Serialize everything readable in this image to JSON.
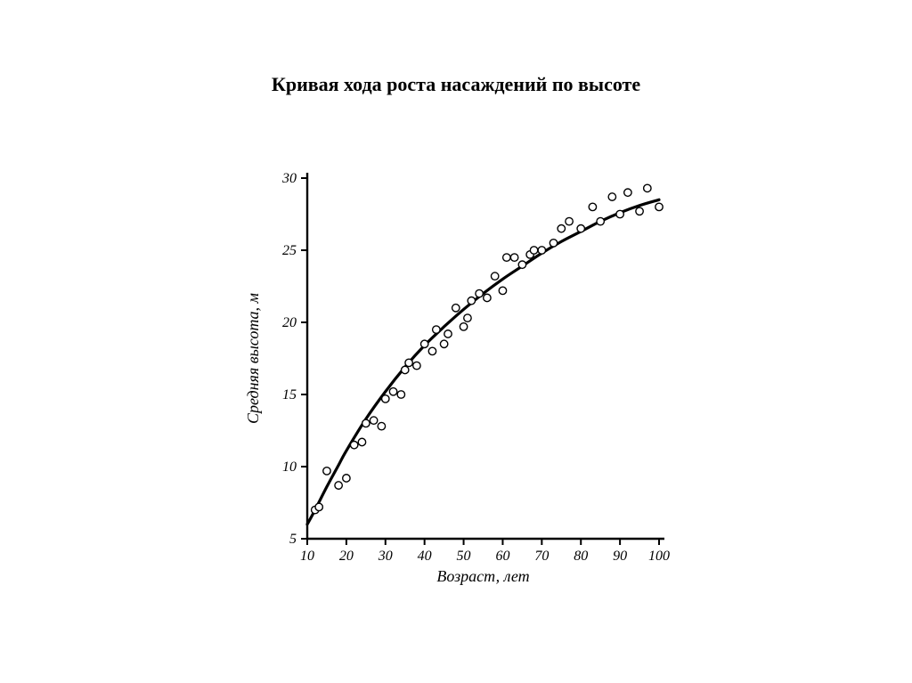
{
  "title": "Кривая хода роста насаждений по высоте",
  "chart": {
    "type": "scatter+line",
    "xlabel": "Возраст, лет",
    "ylabel": "Средняя высота, м",
    "xlim": [
      10,
      100
    ],
    "ylim": [
      5,
      30
    ],
    "xticks": [
      10,
      20,
      30,
      40,
      50,
      60,
      70,
      80,
      90,
      100
    ],
    "yticks": [
      5,
      10,
      15,
      20,
      25,
      30
    ],
    "axis_color": "#000000",
    "line_color": "#000000",
    "line_width": 3.2,
    "marker_stroke": "#000000",
    "marker_fill": "#ffffff",
    "marker_radius": 4.2,
    "marker_stroke_width": 1.4,
    "tick_fontsize": 16,
    "label_fontsize": 18,
    "background_color": "#ffffff",
    "scatter": [
      [
        12,
        7.0
      ],
      [
        13,
        7.2
      ],
      [
        15,
        9.7
      ],
      [
        18,
        8.7
      ],
      [
        20,
        9.2
      ],
      [
        22,
        11.5
      ],
      [
        24,
        11.7
      ],
      [
        25,
        13.0
      ],
      [
        27,
        13.2
      ],
      [
        29,
        12.8
      ],
      [
        30,
        14.7
      ],
      [
        32,
        15.2
      ],
      [
        34,
        15.0
      ],
      [
        35,
        16.7
      ],
      [
        36,
        17.2
      ],
      [
        38,
        17.0
      ],
      [
        40,
        18.5
      ],
      [
        42,
        18.0
      ],
      [
        43,
        19.5
      ],
      [
        45,
        18.5
      ],
      [
        46,
        19.2
      ],
      [
        48,
        21.0
      ],
      [
        50,
        19.7
      ],
      [
        51,
        20.3
      ],
      [
        52,
        21.5
      ],
      [
        54,
        22.0
      ],
      [
        56,
        21.7
      ],
      [
        58,
        23.2
      ],
      [
        60,
        22.2
      ],
      [
        61,
        24.5
      ],
      [
        63,
        24.5
      ],
      [
        65,
        24.0
      ],
      [
        67,
        24.7
      ],
      [
        68,
        25.0
      ],
      [
        70,
        25.0
      ],
      [
        73,
        25.5
      ],
      [
        75,
        26.5
      ],
      [
        77,
        27.0
      ],
      [
        80,
        26.5
      ],
      [
        83,
        28.0
      ],
      [
        85,
        27.0
      ],
      [
        88,
        28.7
      ],
      [
        90,
        27.5
      ],
      [
        92,
        29.0
      ],
      [
        95,
        27.7
      ],
      [
        97,
        29.3
      ],
      [
        100,
        28.0
      ]
    ],
    "curve": [
      [
        10,
        6.0
      ],
      [
        12,
        7.0
      ],
      [
        15,
        8.6
      ],
      [
        18,
        10.1
      ],
      [
        20,
        11.1
      ],
      [
        25,
        13.3
      ],
      [
        30,
        15.2
      ],
      [
        35,
        16.9
      ],
      [
        40,
        18.4
      ],
      [
        45,
        19.7
      ],
      [
        50,
        20.9
      ],
      [
        55,
        22.0
      ],
      [
        60,
        23.0
      ],
      [
        65,
        23.9
      ],
      [
        70,
        24.8
      ],
      [
        75,
        25.6
      ],
      [
        80,
        26.3
      ],
      [
        85,
        27.0
      ],
      [
        90,
        27.6
      ],
      [
        95,
        28.1
      ],
      [
        100,
        28.5
      ]
    ]
  }
}
